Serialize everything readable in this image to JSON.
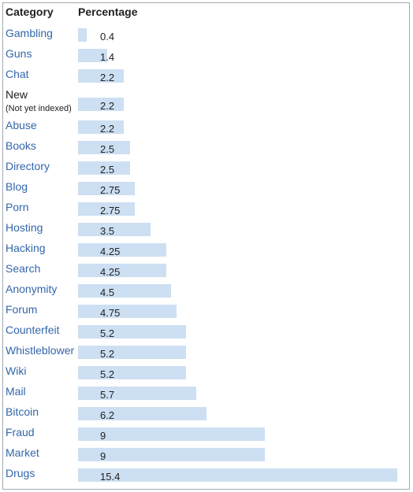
{
  "chart_data": {
    "type": "bar",
    "orientation": "horizontal",
    "headers": {
      "category": "Category",
      "percentage": "Percentage"
    },
    "categories": [
      "Gambling",
      "Guns",
      "Chat",
      "New",
      "Abuse",
      "Books",
      "Directory",
      "Blog",
      "Porn",
      "Hosting",
      "Hacking",
      "Search",
      "Anonymity",
      "Forum",
      "Counterfeit",
      "Whistleblower",
      "Wiki",
      "Mail",
      "Bitcoin",
      "Fraud",
      "Market",
      "Drugs"
    ],
    "category_notes": [
      "",
      "",
      "",
      "(Not yet indexed)",
      "",
      "",
      "",
      "",
      "",
      "",
      "",
      "",
      "",
      "",
      "",
      "",
      "",
      "",
      "",
      "",
      "",
      ""
    ],
    "value_labels": [
      "0.4",
      "1.4",
      "2.2",
      "2.2",
      "2.2",
      "2.5",
      "2.5",
      "2.75",
      "2.75",
      "3.5",
      "4.25",
      "4.25",
      "4.5",
      "4.75",
      "5.2",
      "5.2",
      "5.2",
      "5.7",
      "6.2",
      "9",
      "9",
      "15.4"
    ],
    "values": [
      0.4,
      1.4,
      2.2,
      2.2,
      2.2,
      2.5,
      2.5,
      2.75,
      2.75,
      3.5,
      4.25,
      4.25,
      4.5,
      4.75,
      5.2,
      5.2,
      5.2,
      5.7,
      6.2,
      9,
      9,
      15.4
    ],
    "linked": [
      true,
      true,
      true,
      false,
      true,
      true,
      true,
      true,
      true,
      true,
      true,
      true,
      true,
      true,
      true,
      true,
      true,
      true,
      true,
      true,
      true,
      true
    ],
    "xlim": [
      0,
      15.4
    ],
    "grid": false,
    "colors": {
      "bar": "#cddff2",
      "link_text": "#3366aa",
      "text": "#202122",
      "border": "#a2a9b1"
    }
  }
}
